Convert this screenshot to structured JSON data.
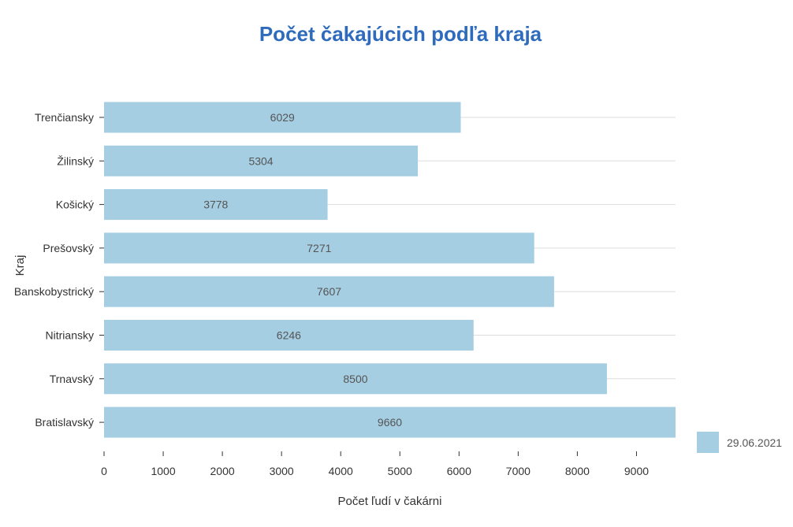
{
  "chart_data": {
    "type": "bar",
    "orientation": "horizontal",
    "title": "Počet čakajúcich podľa kraja",
    "xlabel": "Počet ľudí v čakárni",
    "ylabel": "Kraj",
    "categories": [
      "Trenčiansky",
      "Žilinský",
      "Košický",
      "Prešovský",
      "Banskobystrický",
      "Nitriansky",
      "Trnavský",
      "Bratislavský"
    ],
    "series": [
      {
        "name": "29.06.2021",
        "values": [
          6029,
          5304,
          3778,
          7271,
          7607,
          6246,
          8500,
          9660
        ],
        "color": "#a6cee3"
      }
    ],
    "xlim": [
      0,
      9660
    ],
    "xticks": [
      0,
      1000,
      2000,
      3000,
      4000,
      5000,
      6000,
      7000,
      8000,
      9000
    ],
    "grid": true,
    "legend_position": "bottom-right",
    "title_color": "#2f6bbd"
  }
}
